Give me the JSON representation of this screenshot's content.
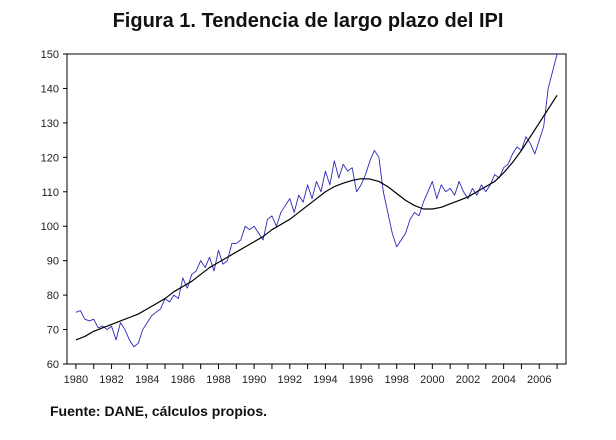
{
  "chart_data": {
    "type": "line",
    "title": "Figura 1. Tendencia de largo plazo del IPI",
    "xlabel": "",
    "ylabel": "",
    "xlim": [
      1979.5,
      2007.5
    ],
    "ylim": [
      60,
      150
    ],
    "y_ticks": [
      "60",
      "70",
      "80",
      "90",
      "100",
      "110",
      "120",
      "130",
      "140",
      "150"
    ],
    "x_ticks": [
      "1980",
      "1982",
      "1984",
      "1986",
      "1988",
      "1990",
      "1992",
      "1994",
      "1996",
      "1998",
      "2000",
      "2002",
      "2004",
      "2006"
    ],
    "grid": false,
    "colors": {
      "series": "#2a2ab8",
      "trend": "#000000",
      "axis": "#000000"
    },
    "series": [
      {
        "name": "IPI",
        "x": [
          1980.0,
          1980.25,
          1980.5,
          1980.75,
          1981.0,
          1981.25,
          1981.5,
          1981.75,
          1982.0,
          1982.25,
          1982.5,
          1982.75,
          1983.0,
          1983.25,
          1983.5,
          1983.75,
          1984.0,
          1984.25,
          1984.5,
          1984.75,
          1985.0,
          1985.25,
          1985.5,
          1985.75,
          1986.0,
          1986.25,
          1986.5,
          1986.75,
          1987.0,
          1987.25,
          1987.5,
          1987.75,
          1988.0,
          1988.25,
          1988.5,
          1988.75,
          1989.0,
          1989.25,
          1989.5,
          1989.75,
          1990.0,
          1990.25,
          1990.5,
          1990.75,
          1991.0,
          1991.25,
          1991.5,
          1991.75,
          1992.0,
          1992.25,
          1992.5,
          1992.75,
          1993.0,
          1993.25,
          1993.5,
          1993.75,
          1994.0,
          1994.25,
          1994.5,
          1994.75,
          1995.0,
          1995.25,
          1995.5,
          1995.75,
          1996.0,
          1996.25,
          1996.5,
          1996.75,
          1997.0,
          1997.25,
          1997.5,
          1997.75,
          1998.0,
          1998.25,
          1998.5,
          1998.75,
          1999.0,
          1999.25,
          1999.5,
          1999.75,
          2000.0,
          2000.25,
          2000.5,
          2000.75,
          2001.0,
          2001.25,
          2001.5,
          2001.75,
          2002.0,
          2002.25,
          2002.5,
          2002.75,
          2003.0,
          2003.25,
          2003.5,
          2003.75,
          2004.0,
          2004.25,
          2004.5,
          2004.75,
          2005.0,
          2005.25,
          2005.5,
          2005.75,
          2006.0,
          2006.25,
          2006.5,
          2006.75,
          2007.0
        ],
        "values": [
          75,
          75.5,
          73,
          72.5,
          73,
          70.5,
          71,
          70,
          71,
          67,
          72,
          70,
          67,
          65,
          66,
          70,
          72,
          74,
          75,
          76,
          79,
          78,
          80,
          79,
          85,
          82,
          86,
          87,
          90,
          88,
          91,
          87,
          93,
          89,
          90,
          95,
          95,
          96,
          100,
          99,
          100,
          98,
          96,
          102,
          103,
          100,
          104,
          106,
          108,
          104,
          109,
          107,
          112,
          108,
          113,
          110,
          116,
          112,
          119,
          114,
          118,
          116,
          117,
          110,
          112,
          115,
          119,
          122,
          120,
          110,
          104,
          98,
          94,
          96,
          98,
          102,
          104,
          103,
          107,
          110,
          113,
          108,
          112,
          110,
          111,
          109,
          113,
          110,
          108,
          111,
          109,
          112,
          110,
          112,
          115,
          114,
          117,
          118,
          121,
          123,
          122,
          126,
          124,
          121,
          125,
          129,
          140,
          145,
          150
        ]
      },
      {
        "name": "Tendencia",
        "x": [
          1980.0,
          1980.5,
          1981.0,
          1981.5,
          1982.0,
          1982.5,
          1983.0,
          1983.5,
          1984.0,
          1984.5,
          1985.0,
          1985.5,
          1986.0,
          1986.5,
          1987.0,
          1987.5,
          1988.0,
          1988.5,
          1989.0,
          1989.5,
          1990.0,
          1990.5,
          1991.0,
          1991.5,
          1992.0,
          1992.5,
          1993.0,
          1993.5,
          1994.0,
          1994.5,
          1995.0,
          1995.5,
          1996.0,
          1996.5,
          1997.0,
          1997.5,
          1998.0,
          1998.5,
          1999.0,
          1999.5,
          2000.0,
          2000.5,
          2001.0,
          2001.5,
          2002.0,
          2002.5,
          2003.0,
          2003.5,
          2004.0,
          2004.5,
          2005.0,
          2005.5,
          2006.0,
          2006.5,
          2007.0
        ],
        "values": [
          67,
          68,
          69.5,
          70.5,
          71.5,
          72.5,
          73.5,
          74.5,
          76,
          77.5,
          79,
          81,
          82.5,
          84,
          86,
          88,
          89.5,
          91,
          92.5,
          94,
          95.5,
          97,
          99,
          100.5,
          102,
          104,
          106,
          108,
          110,
          111.5,
          112.5,
          113.3,
          113.8,
          113.7,
          113,
          111.5,
          109.5,
          107.5,
          106,
          105,
          105,
          105.5,
          106.5,
          107.5,
          108.5,
          110,
          111.5,
          113,
          115.5,
          118.5,
          122,
          126,
          130,
          134,
          138
        ]
      }
    ]
  },
  "footer": {
    "source": "Fuente: DANE, cálculos propios."
  }
}
